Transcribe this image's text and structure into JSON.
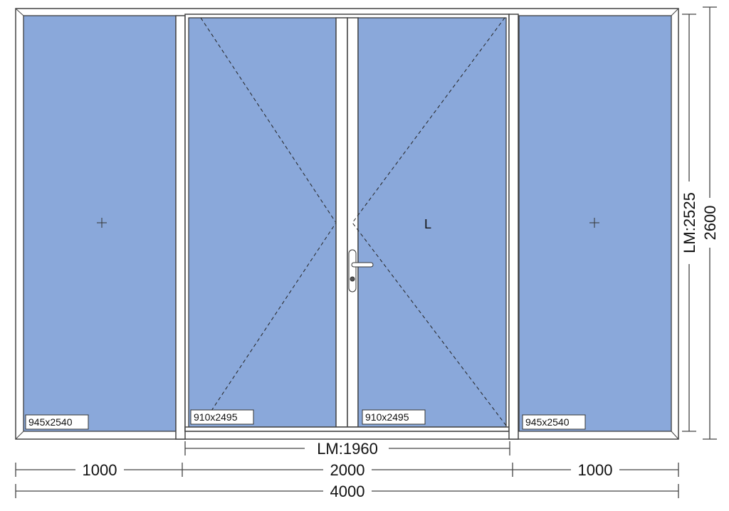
{
  "colors": {
    "glass": "#8aa8da",
    "frame": "#ffffff",
    "outline": "#444444"
  },
  "panels": [
    {
      "label": "945x2540",
      "type": "fixed"
    },
    {
      "label": "910x2495",
      "type": "sash"
    },
    {
      "label": "910x2495",
      "type": "sash",
      "hinge_mark": "L"
    },
    {
      "label": "945x2540",
      "type": "fixed"
    }
  ],
  "dimensions": {
    "door_width": "LM:1960",
    "segments": [
      "1000",
      "2000",
      "1000"
    ],
    "total_width": "4000",
    "door_height": "LM:2525",
    "total_height": "2600"
  },
  "icons": {
    "handle": "door-handle-icon",
    "fixed_mark": "crosshair-icon"
  }
}
